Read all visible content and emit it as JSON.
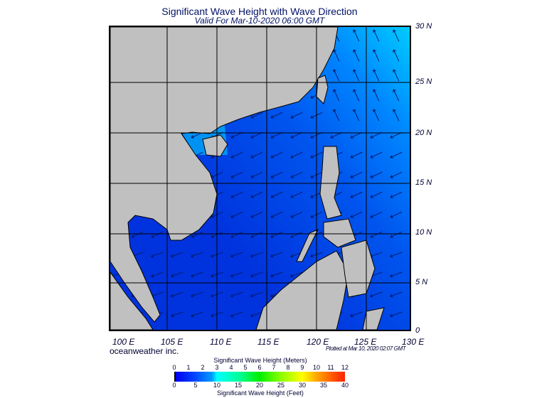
{
  "title": "Significant Wave Height with Wave Direction",
  "subtitle": "Valid For Mar-10-2020 06:00 GMT",
  "lat_labels": [
    "30 N",
    "25 N",
    "20 N",
    "15 N",
    "10 N",
    "5 N",
    "0"
  ],
  "lon_labels": [
    "100 E",
    "105 E",
    "110 E",
    "115 E",
    "120 E",
    "125 E",
    "130 E"
  ],
  "brand": "oceanweather inc.",
  "plotted": "Plotted at Mar 10, 2020 02:07 GMT",
  "colorbar": {
    "meters_title": "Significant Wave Height (Meters)",
    "meters_ticks": [
      "0",
      "1",
      "2",
      "3",
      "4",
      "5",
      "6",
      "7",
      "8",
      "9",
      "10",
      "11",
      "12"
    ],
    "feet_ticks": [
      "0",
      "5",
      "10",
      "15",
      "20",
      "25",
      "30",
      "35",
      "40"
    ],
    "feet_title": "Significant Wave Height (Feet)"
  },
  "colors": {
    "land": "#c0c0c0",
    "ocean_low": "#0033ee",
    "ocean_mid": "#0077ff",
    "ocean_high": "#00ccff"
  }
}
